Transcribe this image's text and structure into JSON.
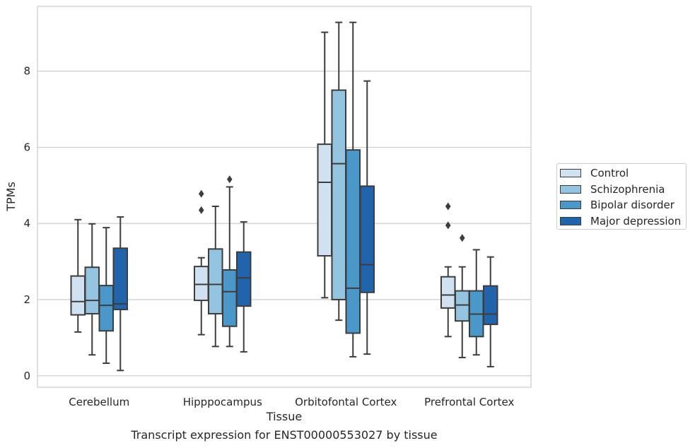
{
  "chart_data": {
    "type": "box",
    "xlabel": "Tissue",
    "ylabel": "TPMs",
    "caption": "Transcript expression for ENST00000553027 by tissue",
    "ylim": [
      -0.3,
      9.7
    ],
    "yticks": [
      0,
      2,
      4,
      6,
      8
    ],
    "categories": [
      "Cerebellum",
      "Hipppocampus",
      "Orbitofontal Cortex",
      "Prefrontal Cortex"
    ],
    "grid": "horizontal",
    "legend_position": "right",
    "series": [
      {
        "name": "Control",
        "color": "#d0e1f2",
        "boxes": [
          {
            "min": 1.15,
            "q1": 1.6,
            "median": 1.95,
            "q3": 2.62,
            "max": 4.1,
            "outliers": []
          },
          {
            "min": 1.08,
            "q1": 1.98,
            "median": 2.4,
            "q3": 2.87,
            "max": 3.1,
            "outliers": [
              4.35,
              4.78
            ]
          },
          {
            "min": 2.05,
            "q1": 3.15,
            "median": 5.08,
            "q3": 6.08,
            "max": 9.02,
            "outliers": []
          },
          {
            "min": 1.03,
            "q1": 1.78,
            "median": 2.12,
            "q3": 2.6,
            "max": 2.86,
            "outliers": [
              3.95,
              4.45
            ]
          }
        ]
      },
      {
        "name": "Schizophrenia",
        "color": "#94c4df",
        "boxes": [
          {
            "min": 0.55,
            "q1": 1.63,
            "median": 1.98,
            "q3": 2.85,
            "max": 3.99,
            "outliers": []
          },
          {
            "min": 0.77,
            "q1": 1.63,
            "median": 2.4,
            "q3": 3.33,
            "max": 4.45,
            "outliers": []
          },
          {
            "min": 1.46,
            "q1": 2.0,
            "median": 5.57,
            "q3": 7.5,
            "max": 9.28,
            "outliers": []
          },
          {
            "min": 0.48,
            "q1": 1.44,
            "median": 1.86,
            "q3": 2.23,
            "max": 2.86,
            "outliers": [
              3.62
            ]
          }
        ]
      },
      {
        "name": "Bipolar disorder",
        "color": "#4a98c9",
        "boxes": [
          {
            "min": 0.33,
            "q1": 1.18,
            "median": 1.85,
            "q3": 2.37,
            "max": 3.89,
            "outliers": []
          },
          {
            "min": 0.77,
            "q1": 1.3,
            "median": 2.21,
            "q3": 2.78,
            "max": 4.96,
            "outliers": [
              5.16
            ]
          },
          {
            "min": 0.5,
            "q1": 1.12,
            "median": 2.3,
            "q3": 5.93,
            "max": 9.28,
            "outliers": []
          },
          {
            "min": 0.55,
            "q1": 1.03,
            "median": 1.62,
            "q3": 2.23,
            "max": 3.31,
            "outliers": []
          }
        ]
      },
      {
        "name": "Major depression",
        "color": "#2164ab",
        "boxes": [
          {
            "min": 0.14,
            "q1": 1.74,
            "median": 1.89,
            "q3": 3.35,
            "max": 4.17,
            "outliers": []
          },
          {
            "min": 0.63,
            "q1": 1.83,
            "median": 2.57,
            "q3": 3.25,
            "max": 4.04,
            "outliers": []
          },
          {
            "min": 0.57,
            "q1": 2.19,
            "median": 2.92,
            "q3": 4.98,
            "max": 7.74,
            "outliers": []
          },
          {
            "min": 0.24,
            "q1": 1.35,
            "median": 1.62,
            "q3": 2.36,
            "max": 3.12,
            "outliers": []
          }
        ]
      }
    ]
  }
}
